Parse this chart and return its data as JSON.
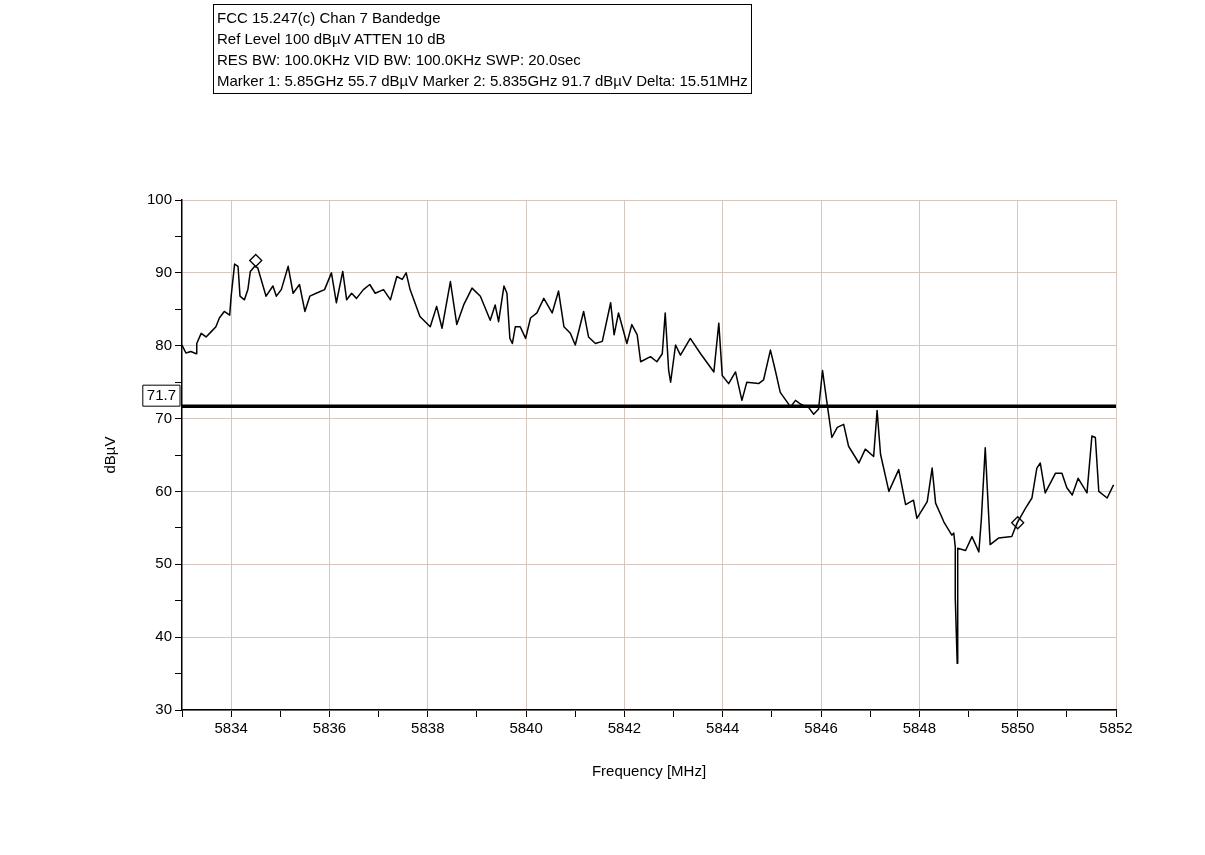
{
  "chart_data": {
    "type": "line",
    "title": "FCC 15.247(c) Chan 7 Bandedge",
    "annotations": [
      "Ref Level 100 dBµV    ATTEN 10 dB",
      "RES BW: 100.0KHz  VID BW: 100.0KHz  SWP: 20.0sec",
      "Marker 1: 5.85GHz  55.7 dBµV    Marker 2: 5.835GHz  91.7 dBµV Delta: 15.51MHz"
    ],
    "xlabel": "Frequency [MHz]",
    "ylabel": "dBµV",
    "xlim": [
      5833,
      5852
    ],
    "ylim": [
      30,
      100
    ],
    "xticks": [
      {
        "value": 5833,
        "label": null
      },
      5834,
      {
        "value": 5835,
        "label": null
      },
      5836,
      {
        "value": 5837,
        "label": null
      },
      5838,
      {
        "value": 5839,
        "label": null
      },
      5840,
      {
        "value": 5841,
        "label": null
      },
      5842,
      {
        "value": 5843,
        "label": null
      },
      5844,
      {
        "value": 5845,
        "label": null
      },
      5846,
      {
        "value": 5847,
        "label": null
      },
      5848,
      {
        "value": 5849,
        "label": null
      },
      5850,
      {
        "value": 5851,
        "label": null
      },
      5852
    ],
    "yticks": [
      30,
      {
        "value": 35,
        "label": null
      },
      40,
      {
        "value": 45,
        "label": null
      },
      50,
      {
        "value": 55,
        "label": null
      },
      60,
      {
        "value": 65,
        "label": null
      },
      70,
      {
        "value": 75,
        "label": null
      },
      80,
      {
        "value": 85,
        "label": null
      },
      90,
      {
        "value": 95,
        "label": null
      },
      100
    ],
    "grid": true,
    "ref_lines": [
      {
        "axis": "y",
        "value": 71.7,
        "label": "71.7",
        "color": "#000000"
      }
    ],
    "series": [
      {
        "color": "#000000",
        "marker": "none",
        "x": [
          5833.0,
          5833.08,
          5833.18,
          5833.29,
          5833.3,
          5833.39,
          5833.49,
          5833.59,
          5833.69,
          5833.76,
          5833.86,
          5833.97,
          5834.0,
          5834.07,
          5834.14,
          5834.18,
          5834.27,
          5834.34,
          5834.39,
          5834.48,
          5834.54,
          5834.71,
          5834.85,
          5834.92,
          5835.02,
          5835.16,
          5835.26,
          5835.39,
          5835.5,
          5835.6,
          5835.73,
          5835.9,
          5836.04,
          5836.14,
          5836.27,
          5836.35,
          5836.45,
          5836.55,
          5836.69,
          5836.82,
          5836.93,
          5837.1,
          5837.24,
          5837.37,
          5837.48,
          5837.56,
          5837.64,
          5837.84,
          5838.05,
          5838.18,
          5838.29,
          5838.46,
          5838.59,
          5838.73,
          5838.9,
          5839.07,
          5839.27,
          5839.37,
          5839.44,
          5839.55,
          5839.61,
          5839.67,
          5839.72,
          5839.78,
          5839.88,
          5839.99,
          5840.09,
          5840.22,
          5840.36,
          5840.53,
          5840.66,
          5840.77,
          5840.9,
          5841.0,
          5841.17,
          5841.27,
          5841.41,
          5841.55,
          5841.72,
          5841.79,
          5841.88,
          5842.05,
          5842.15,
          5842.26,
          5842.33,
          5842.53,
          5842.66,
          5842.77,
          5842.83,
          5842.9,
          5842.94,
          5843.04,
          5843.14,
          5843.34,
          5843.55,
          5843.82,
          5843.92,
          5843.99,
          5844.12,
          5844.26,
          5844.39,
          5844.49,
          5844.73,
          5844.83,
          5844.97,
          5845.07,
          5845.17,
          5845.38,
          5845.48,
          5845.58,
          5845.75,
          5845.85,
          5845.95,
          5846.03,
          5846.12,
          5846.22,
          5846.33,
          5846.46,
          5846.56,
          5846.77,
          5846.9,
          5847.07,
          5847.14,
          5847.21,
          5847.38,
          5847.58,
          5847.72,
          5847.88,
          5847.95,
          5848.16,
          5848.26,
          5848.33,
          5848.5,
          5848.66,
          5848.7,
          5848.73,
          5848.73,
          5848.77,
          5848.78,
          5848.94,
          5849.07,
          5849.21,
          5849.26,
          5849.34,
          5849.44,
          5849.61,
          5849.88,
          5849.99,
          5850.16,
          5850.29,
          5850.39,
          5850.46,
          5850.56,
          5850.77,
          5850.9,
          5851.0,
          5851.11,
          5851.23,
          5851.41,
          5851.51,
          5851.58,
          5851.65,
          5851.82,
          5851.95
        ],
        "values": [
          80.1,
          79.0,
          79.2,
          78.9,
          80.3,
          81.7,
          81.2,
          81.9,
          82.6,
          83.8,
          84.7,
          84.2,
          86.8,
          91.2,
          90.9,
          86.8,
          86.3,
          87.7,
          90.2,
          90.9,
          90.7,
          86.8,
          88.2,
          86.8,
          87.7,
          90.9,
          87.2,
          88.4,
          84.7,
          86.8,
          87.2,
          87.7,
          90.0,
          85.9,
          90.2,
          86.3,
          87.2,
          86.5,
          87.7,
          88.4,
          87.2,
          87.7,
          86.3,
          89.5,
          89.1,
          90.0,
          87.7,
          84.0,
          82.6,
          85.4,
          82.4,
          88.8,
          82.9,
          85.6,
          87.9,
          86.8,
          83.5,
          85.6,
          83.3,
          88.2,
          87.2,
          81.0,
          80.3,
          82.6,
          82.6,
          81.0,
          83.8,
          84.5,
          86.5,
          84.5,
          87.5,
          82.6,
          81.7,
          80.1,
          84.7,
          81.2,
          80.3,
          80.6,
          85.9,
          81.5,
          84.5,
          80.3,
          82.9,
          81.5,
          77.8,
          78.5,
          77.8,
          78.9,
          84.5,
          76.6,
          75.0,
          80.1,
          78.7,
          81.0,
          78.9,
          76.4,
          83.1,
          75.9,
          74.8,
          76.4,
          72.5,
          75.0,
          74.8,
          75.3,
          79.4,
          76.6,
          73.6,
          71.6,
          72.5,
          72.0,
          71.5,
          70.6,
          71.3,
          76.6,
          72.2,
          67.4,
          68.8,
          69.2,
          66.2,
          63.9,
          65.8,
          64.8,
          71.1,
          65.1,
          60.0,
          63.0,
          58.2,
          58.8,
          56.3,
          58.6,
          63.2,
          58.4,
          55.8,
          54.0,
          54.3,
          52.4,
          45.4,
          36.4,
          52.2,
          51.9,
          53.8,
          51.7,
          56.1,
          66.0,
          52.7,
          53.6,
          53.8,
          55.7,
          57.7,
          59.1,
          63.2,
          63.9,
          59.8,
          62.5,
          62.5,
          60.5,
          59.5,
          61.8,
          59.8,
          67.6,
          67.4,
          60.0,
          59.1,
          60.9
        ]
      },
      {
        "type": "scatter",
        "color": "#000000",
        "marker": "diamond",
        "x": [
          5834.5,
          5850
        ],
        "values": [
          91.7,
          55.7
        ]
      }
    ]
  }
}
